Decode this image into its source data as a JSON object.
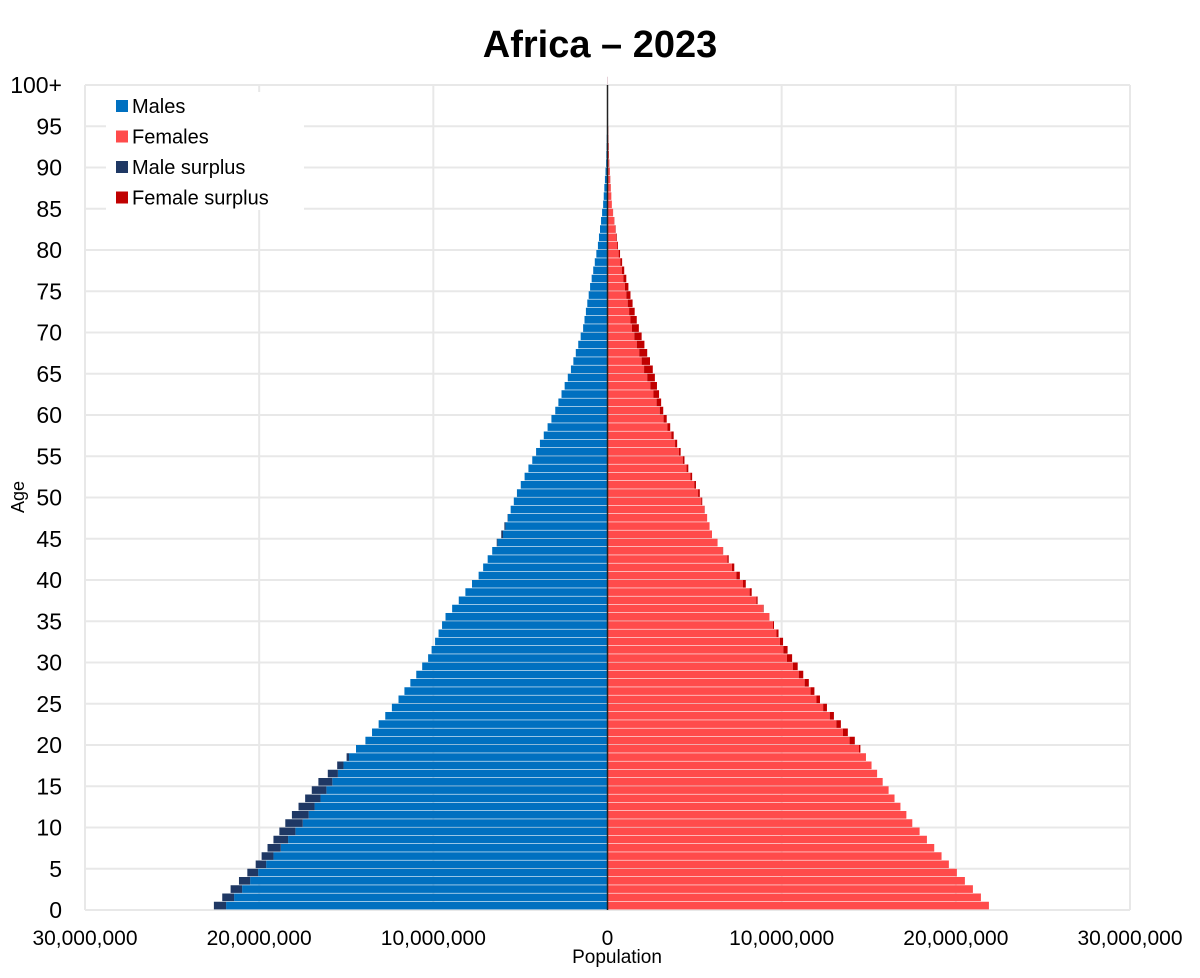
{
  "chart_data": {
    "type": "bar",
    "orientation": "horizontal-pyramid",
    "title": "Africa – 2023",
    "xlabel": "Population",
    "ylabel": "Age",
    "xlim": [
      -30000000,
      30000000
    ],
    "x_tick_values": [
      -30000000,
      -20000000,
      -10000000,
      0,
      10000000,
      20000000,
      30000000
    ],
    "x_tick_labels": [
      "30,000,000",
      "20,000,000",
      "10,000,000",
      "0",
      "10,000,000",
      "20,000,000",
      "30,000,000"
    ],
    "y_tick_labels": [
      "0",
      "5",
      "10",
      "15",
      "20",
      "25",
      "30",
      "35",
      "40",
      "45",
      "50",
      "55",
      "60",
      "65",
      "70",
      "75",
      "80",
      "85",
      "90",
      "95",
      "100+"
    ],
    "grid": true,
    "legend_placement": "top-left",
    "legend": [
      {
        "label": "Males",
        "color": "#0070c0"
      },
      {
        "label": "Females",
        "color": "#ff4b4b"
      },
      {
        "label": "Male surplus",
        "color": "#1f3864"
      },
      {
        "label": "Female surplus",
        "color": "#c00000"
      }
    ],
    "series": [
      {
        "name": "Males",
        "color": "#0070c0",
        "values": [
          22600000,
          22120000,
          21640000,
          21160000,
          20680000,
          20200000,
          19860000,
          19520000,
          19180000,
          18840000,
          18500000,
          18120000,
          17740000,
          17360000,
          16980000,
          16600000,
          16060000,
          15520000,
          14980000,
          14440000,
          13900000,
          13520000,
          13140000,
          12760000,
          12380000,
          12000000,
          11660000,
          11320000,
          10980000,
          10640000,
          10300000,
          10100000,
          9900000,
          9700000,
          9500000,
          9300000,
          8920000,
          8540000,
          8160000,
          7780000,
          7400000,
          7140000,
          6880000,
          6620000,
          6360000,
          6100000,
          5920000,
          5740000,
          5560000,
          5380000,
          5200000,
          4980000,
          4760000,
          4540000,
          4320000,
          4100000,
          3880000,
          3660000,
          3440000,
          3220000,
          3000000,
          2820000,
          2640000,
          2460000,
          2280000,
          2100000,
          1960000,
          1820000,
          1680000,
          1540000,
          1400000,
          1320000,
          1240000,
          1160000,
          1080000,
          1000000,
          910000,
          820000,
          730000,
          640000,
          550000,
          490000,
          430000,
          370000,
          310000,
          250000,
          216000,
          182000,
          148000,
          114000,
          80000,
          68000,
          56000,
          44000,
          32000,
          20000,
          17000,
          14000,
          11000,
          8000,
          5000
        ]
      },
      {
        "name": "Females",
        "color": "#ff4b4b",
        "values": [
          21900000,
          21440000,
          20980000,
          20520000,
          20060000,
          19600000,
          19180000,
          18760000,
          18340000,
          17920000,
          17500000,
          17160000,
          16820000,
          16480000,
          16140000,
          15800000,
          15480000,
          15160000,
          14840000,
          14520000,
          14200000,
          13800000,
          13400000,
          13000000,
          12600000,
          12200000,
          11880000,
          11560000,
          11240000,
          10920000,
          10600000,
          10340000,
          10080000,
          9820000,
          9560000,
          9300000,
          8960000,
          8620000,
          8280000,
          7940000,
          7600000,
          7280000,
          6960000,
          6640000,
          6320000,
          6000000,
          5860000,
          5720000,
          5580000,
          5440000,
          5300000,
          5080000,
          4860000,
          4640000,
          4420000,
          4200000,
          4000000,
          3800000,
          3600000,
          3400000,
          3200000,
          3080000,
          2960000,
          2840000,
          2720000,
          2600000,
          2440000,
          2280000,
          2120000,
          1960000,
          1800000,
          1680000,
          1560000,
          1440000,
          1320000,
          1200000,
          1080000,
          960000,
          840000,
          720000,
          600000,
          530000,
          460000,
          390000,
          320000,
          250000,
          220000,
          190000,
          160000,
          130000,
          100000,
          86000,
          72000,
          58000,
          44000,
          30000,
          26000,
          22000,
          18000,
          14000,
          10000
        ]
      }
    ]
  }
}
